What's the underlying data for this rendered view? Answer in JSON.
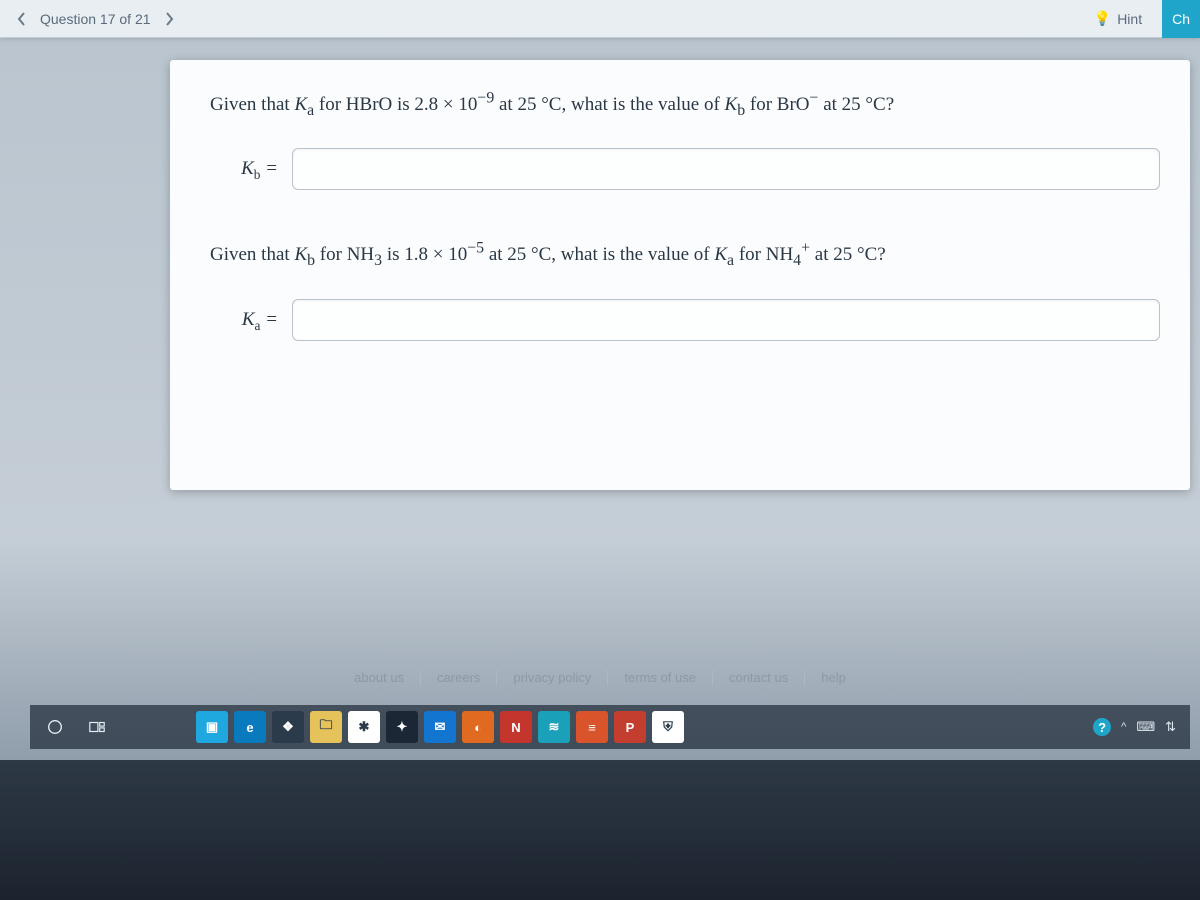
{
  "nav": {
    "question_label": "Question 17 of 21",
    "hint_label": "Hint",
    "ch_label": "Ch"
  },
  "q1": {
    "prompt_html": "Given that <i>K</i><sub>a</sub> for HBrO is 2.8 × 10<sup>−9</sup> at 25 °C, what is the value of <i>K</i><sub>b</sub> for BrO<sup>−</sup> at 25 °C?",
    "var_html": "<i>K</i><sub>b</sub> =",
    "value": ""
  },
  "q2": {
    "prompt_html": "Given that <i>K</i><sub>b</sub> for NH<sub>3</sub> is 1.8 × 10<sup>−5</sup> at 25 °C, what is the value of <i>K</i><sub>a</sub> for NH<sub>4</sub><sup>+</sup> at 25 °C?",
    "var_html": "<i>K</i><sub>a</sub> =",
    "value": ""
  },
  "footer": {
    "about": "about us",
    "careers": "careers",
    "privacy": "privacy policy",
    "terms": "terms of use",
    "contact": "contact us",
    "help": "help"
  },
  "taskbar": {
    "apps": [
      {
        "name": "start-icon",
        "bg": "transparent",
        "glyph": "circle"
      },
      {
        "name": "task-view-icon",
        "bg": "transparent",
        "glyph": "taskview"
      },
      {
        "name": "camera-icon",
        "bg": "#1fa8e0",
        "glyph": "▣"
      },
      {
        "name": "edge-icon",
        "bg": "#0a7abf",
        "glyph": "e"
      },
      {
        "name": "store-icon",
        "bg": "#2b3b4b",
        "glyph": "❖"
      },
      {
        "name": "explorer-icon",
        "bg": "#e6c25a",
        "glyph": "🗀"
      },
      {
        "name": "slack-icon",
        "bg": "#ffffff",
        "glyph": "✱"
      },
      {
        "name": "app-x-icon",
        "bg": "#1b2735",
        "glyph": "✦"
      },
      {
        "name": "mail-icon",
        "bg": "#1276d1",
        "glyph": "✉"
      },
      {
        "name": "firefox-icon",
        "bg": "#e06a1f",
        "glyph": "◐"
      },
      {
        "name": "n-app-icon",
        "bg": "#c4352e",
        "glyph": "N"
      },
      {
        "name": "prime-icon",
        "bg": "#1aa0b8",
        "glyph": "≋"
      },
      {
        "name": "groove-icon",
        "bg": "#d9532b",
        "glyph": "≡"
      },
      {
        "name": "p-app-icon",
        "bg": "#c33e2e",
        "glyph": "P"
      },
      {
        "name": "security-icon",
        "bg": "#ffffff",
        "glyph": "⛨"
      }
    ],
    "tray": {
      "help": "?",
      "chev": "^",
      "lang": "⌨",
      "net": "⇅"
    }
  },
  "colors": {
    "accent": "#1ea5c9",
    "card_bg": "#fbfcfd",
    "page_bg": "#b9c4ce",
    "text": "#2a3745"
  }
}
